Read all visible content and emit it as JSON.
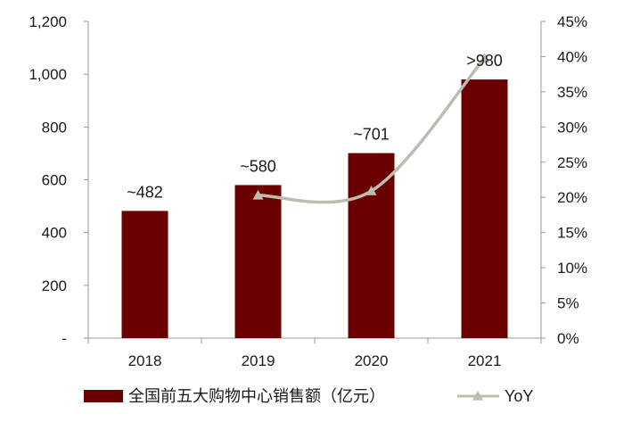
{
  "chart_data": {
    "type": "bar",
    "categories": [
      "2018",
      "2019",
      "2020",
      "2021"
    ],
    "series": [
      {
        "name": "全国前五大购物中心销售额（亿元）",
        "type": "bar",
        "axis": "left",
        "values": [
          482,
          580,
          701,
          980
        ],
        "data_labels": [
          "~482",
          "~580",
          "~701",
          ">980"
        ]
      },
      {
        "name": "YoY",
        "type": "line",
        "axis": "right",
        "values": [
          null,
          20.3,
          20.9,
          39.8
        ]
      }
    ],
    "y_left": {
      "min": 0,
      "max": 1200,
      "ticks": [
        0,
        200,
        400,
        600,
        800,
        1000,
        1200
      ],
      "tick_labels": [
        "-",
        "200",
        "400",
        "600",
        "800",
        "1,000",
        "1,200"
      ]
    },
    "y_right": {
      "min": 0,
      "max": 45,
      "ticks": [
        0,
        5,
        10,
        15,
        20,
        25,
        30,
        35,
        40,
        45
      ],
      "tick_labels": [
        "0%",
        "5%",
        "10%",
        "15%",
        "20%",
        "25%",
        "30%",
        "35%",
        "40%",
        "45%"
      ]
    },
    "grid": false,
    "legend": "bottom",
    "colors": {
      "bar": "#6b0000",
      "line": "#bdbcaf",
      "axis": "#999999"
    }
  }
}
